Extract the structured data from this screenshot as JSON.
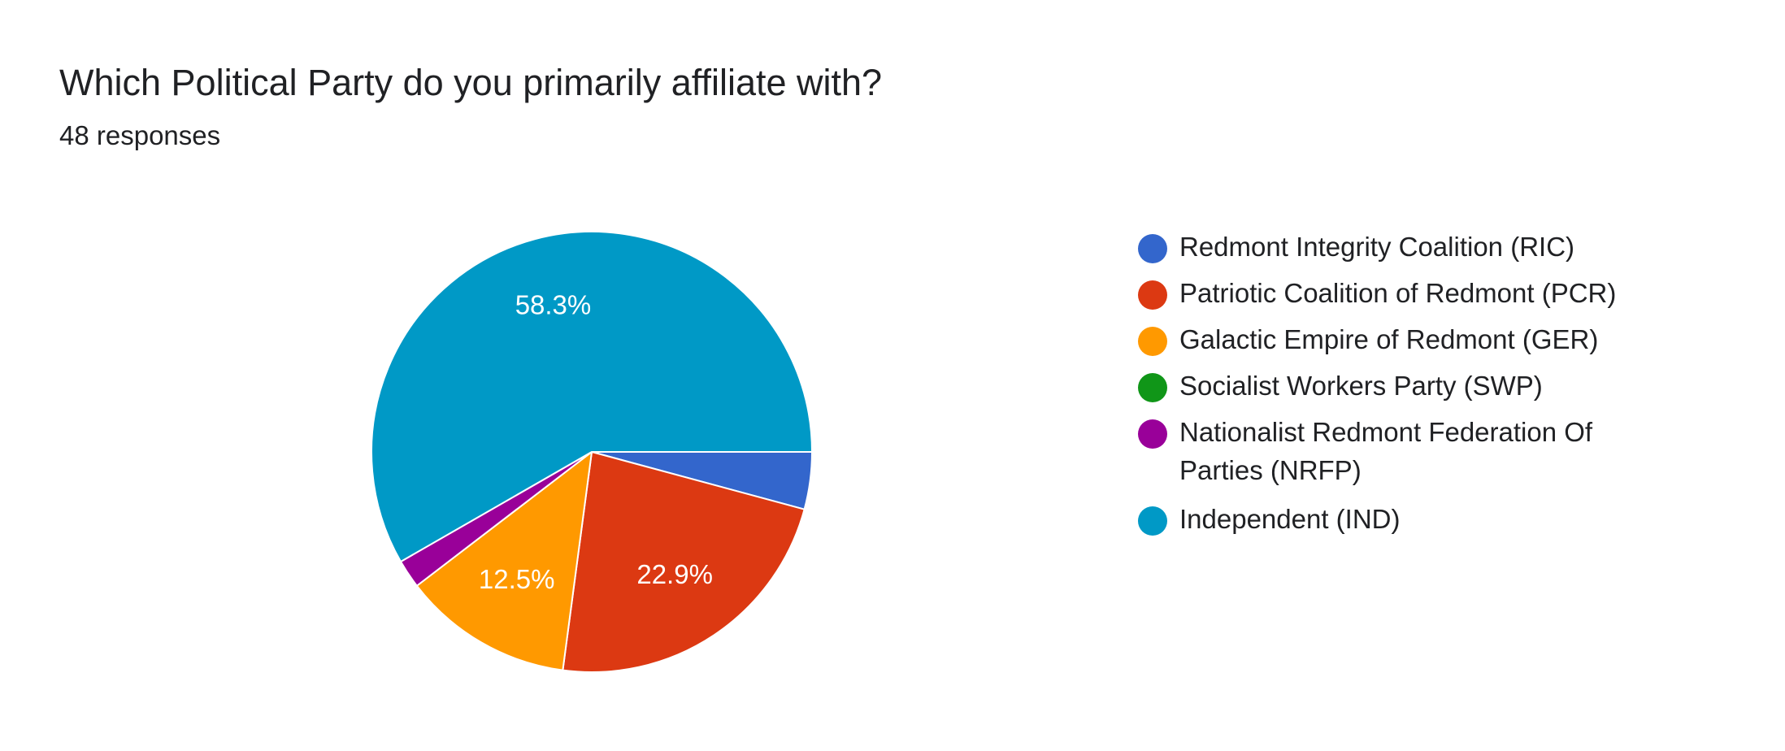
{
  "chart_data": {
    "type": "pie",
    "title": "Which Political Party do you primarily affiliate with?",
    "subtitle": "48 responses",
    "categories": [
      "Redmont Integrity Coalition (RIC)",
      "Patriotic Coalition of Redmont (PCR)",
      "Galactic Empire of Redmont (GER)",
      "Socialist Workers Party (SWP)",
      "Nationalist Redmont Federation Of Parties (NRFP)",
      "Independent (IND)"
    ],
    "values": [
      4.2,
      22.9,
      12.5,
      0,
      2.1,
      58.3
    ],
    "value_labels": [
      null,
      "22.9%",
      "12.5%",
      null,
      null,
      "58.3%"
    ],
    "colors": [
      "#3366cc",
      "#dc3912",
      "#ff9900",
      "#109618",
      "#990099",
      "#0099c6"
    ]
  }
}
